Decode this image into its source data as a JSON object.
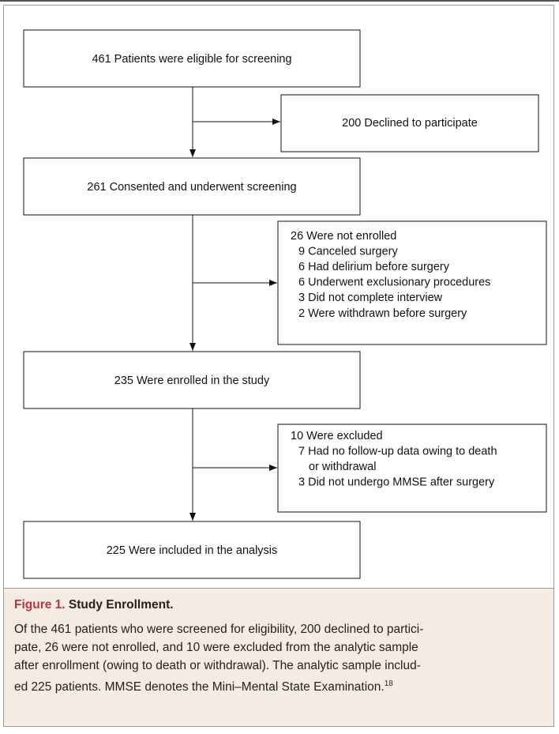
{
  "flowchart": {
    "nodes": [
      {
        "label": "461 Patients were eligible for screening"
      },
      {
        "label": "261 Consented and underwent screening"
      },
      {
        "label": "235 Were enrolled in the study"
      },
      {
        "label": "225 Were included in the analysis"
      }
    ],
    "exclusions": [
      {
        "title": "200 Declined to participate",
        "items": []
      },
      {
        "title": "26 Were not enrolled",
        "items": [
          [
            "9 Canceled surgery"
          ],
          [
            "6 Had delirium before surgery"
          ],
          [
            "6 Underwent exclusionary procedures"
          ],
          [
            "3 Did not complete interview"
          ],
          [
            "2 Were withdrawn before surgery"
          ]
        ]
      },
      {
        "title": "10 Were excluded",
        "items": [
          [
            "7 Had no follow-up data owing to death",
            "or withdrawal"
          ],
          [
            "3 Did not undergo MMSE after surgery"
          ]
        ]
      }
    ]
  },
  "caption": {
    "label": "Figure 1.",
    "title": "Study Enrollment.",
    "lines": [
      "Of the 461 patients who were screened for eligibility, 200 declined to partici-",
      "pate, 26 were not enrolled, and 10 were excluded from the analytic sample",
      "after enrollment (owing to death or withdrawal). The analytic sample includ-",
      "ed 225 patients. MMSE denotes the Mini–Mental State Examination."
    ],
    "reference": "18"
  }
}
